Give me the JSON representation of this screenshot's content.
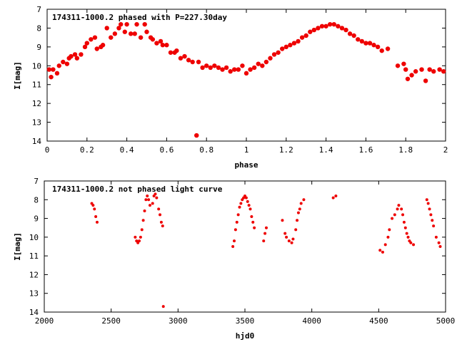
{
  "colors": {
    "marker": "#ee0000",
    "axis": "#000000",
    "background": "#ffffff"
  },
  "chart_data": [
    {
      "type": "scatter",
      "title": "174311-1000.2 phased with P=227.30day",
      "xlabel": "phase",
      "ylabel": "I[mag]",
      "xlim": [
        0,
        2
      ],
      "ylim": [
        14,
        7
      ],
      "y_inverted": true,
      "grid": false,
      "legend": "none",
      "x_ticks": [
        "0",
        "0.2",
        "0.4",
        "0.6",
        "0.8",
        "1",
        "1.2",
        "1.4",
        "1.6",
        "1.8",
        "2"
      ],
      "y_ticks": [
        "7",
        "8",
        "9",
        "10",
        "11",
        "12",
        "13",
        "14"
      ],
      "marker": "filled-circle-large",
      "points": [
        [
          0.01,
          10.2
        ],
        [
          0.02,
          10.6
        ],
        [
          0.03,
          10.2
        ],
        [
          0.05,
          10.4
        ],
        [
          0.06,
          10.0
        ],
        [
          0.08,
          9.8
        ],
        [
          0.1,
          9.9
        ],
        [
          0.11,
          9.6
        ],
        [
          0.12,
          9.5
        ],
        [
          0.14,
          9.4
        ],
        [
          0.15,
          9.6
        ],
        [
          0.17,
          9.4
        ],
        [
          0.19,
          9.0
        ],
        [
          0.2,
          8.8
        ],
        [
          0.22,
          8.6
        ],
        [
          0.24,
          8.5
        ],
        [
          0.25,
          9.1
        ],
        [
          0.27,
          9.0
        ],
        [
          0.28,
          8.9
        ],
        [
          0.3,
          8.0
        ],
        [
          0.32,
          8.5
        ],
        [
          0.34,
          8.3
        ],
        [
          0.36,
          8.0
        ],
        [
          0.37,
          7.8
        ],
        [
          0.39,
          8.2
        ],
        [
          0.4,
          7.8
        ],
        [
          0.42,
          8.3
        ],
        [
          0.44,
          8.3
        ],
        [
          0.45,
          7.8
        ],
        [
          0.47,
          8.5
        ],
        [
          0.49,
          7.8
        ],
        [
          0.5,
          8.2
        ],
        [
          0.52,
          8.5
        ],
        [
          0.53,
          8.6
        ],
        [
          0.55,
          8.8
        ],
        [
          0.57,
          8.7
        ],
        [
          0.58,
          8.9
        ],
        [
          0.6,
          8.9
        ],
        [
          0.62,
          9.3
        ],
        [
          0.64,
          9.3
        ],
        [
          0.65,
          9.2
        ],
        [
          0.67,
          9.6
        ],
        [
          0.69,
          9.5
        ],
        [
          0.71,
          9.7
        ],
        [
          0.73,
          9.8
        ],
        [
          0.75,
          13.7
        ],
        [
          0.76,
          9.8
        ],
        [
          0.78,
          10.1
        ],
        [
          0.8,
          10.0
        ],
        [
          0.82,
          10.1
        ],
        [
          0.84,
          10.0
        ],
        [
          0.86,
          10.1
        ],
        [
          0.88,
          10.2
        ],
        [
          0.9,
          10.1
        ],
        [
          0.92,
          10.3
        ],
        [
          0.94,
          10.2
        ],
        [
          0.96,
          10.2
        ],
        [
          0.98,
          10.0
        ],
        [
          1.0,
          10.4
        ],
        [
          1.02,
          10.2
        ],
        [
          1.04,
          10.1
        ],
        [
          1.06,
          9.9
        ],
        [
          1.08,
          10.0
        ],
        [
          1.1,
          9.8
        ],
        [
          1.12,
          9.6
        ],
        [
          1.14,
          9.4
        ],
        [
          1.16,
          9.3
        ],
        [
          1.18,
          9.1
        ],
        [
          1.2,
          9.0
        ],
        [
          1.22,
          8.9
        ],
        [
          1.24,
          8.8
        ],
        [
          1.26,
          8.7
        ],
        [
          1.28,
          8.5
        ],
        [
          1.3,
          8.4
        ],
        [
          1.32,
          8.2
        ],
        [
          1.34,
          8.1
        ],
        [
          1.36,
          8.0
        ],
        [
          1.38,
          7.9
        ],
        [
          1.4,
          7.9
        ],
        [
          1.42,
          7.8
        ],
        [
          1.44,
          7.8
        ],
        [
          1.46,
          7.9
        ],
        [
          1.48,
          8.0
        ],
        [
          1.5,
          8.1
        ],
        [
          1.52,
          8.3
        ],
        [
          1.54,
          8.4
        ],
        [
          1.56,
          8.6
        ],
        [
          1.58,
          8.7
        ],
        [
          1.6,
          8.8
        ],
        [
          1.62,
          8.8
        ],
        [
          1.64,
          8.9
        ],
        [
          1.66,
          9.0
        ],
        [
          1.68,
          9.2
        ],
        [
          1.71,
          9.1
        ],
        [
          1.76,
          10.0
        ],
        [
          1.79,
          9.9
        ],
        [
          1.8,
          10.2
        ],
        [
          1.81,
          10.7
        ],
        [
          1.83,
          10.5
        ],
        [
          1.85,
          10.3
        ],
        [
          1.88,
          10.2
        ],
        [
          1.9,
          10.8
        ],
        [
          1.92,
          10.2
        ],
        [
          1.94,
          10.3
        ],
        [
          1.97,
          10.2
        ],
        [
          1.99,
          10.3
        ]
      ]
    },
    {
      "type": "scatter",
      "title": "174311-1000.2 not phased light curve",
      "xlabel": "hjd0",
      "ylabel": "I[mag]",
      "xlim": [
        2000,
        5000
      ],
      "ylim": [
        14,
        7
      ],
      "y_inverted": true,
      "grid": false,
      "legend": "none",
      "x_ticks": [
        "2000",
        "2500",
        "3000",
        "3500",
        "4000",
        "4500",
        "5000"
      ],
      "y_ticks": [
        "7",
        "8",
        "9",
        "10",
        "11",
        "12",
        "13",
        "14"
      ],
      "marker": "filled-circle-small",
      "points": [
        [
          2355,
          8.2
        ],
        [
          2365,
          8.3
        ],
        [
          2375,
          8.5
        ],
        [
          2385,
          8.9
        ],
        [
          2395,
          9.2
        ],
        [
          2680,
          10.0
        ],
        [
          2690,
          10.2
        ],
        [
          2700,
          10.3
        ],
        [
          2710,
          10.2
        ],
        [
          2720,
          10.0
        ],
        [
          2730,
          9.6
        ],
        [
          2740,
          9.1
        ],
        [
          2750,
          8.6
        ],
        [
          2760,
          8.0
        ],
        [
          2770,
          7.8
        ],
        [
          2780,
          8.0
        ],
        [
          2790,
          8.3
        ],
        [
          2810,
          8.2
        ],
        [
          2820,
          7.8
        ],
        [
          2830,
          7.7
        ],
        [
          2840,
          7.9
        ],
        [
          2855,
          8.5
        ],
        [
          2865,
          8.8
        ],
        [
          2875,
          9.2
        ],
        [
          2885,
          9.4
        ],
        [
          2890,
          13.7
        ],
        [
          3410,
          10.5
        ],
        [
          3420,
          10.2
        ],
        [
          3430,
          9.6
        ],
        [
          3440,
          9.2
        ],
        [
          3450,
          8.8
        ],
        [
          3460,
          8.4
        ],
        [
          3470,
          8.2
        ],
        [
          3480,
          8.0
        ],
        [
          3490,
          7.9
        ],
        [
          3500,
          7.8
        ],
        [
          3510,
          7.9
        ],
        [
          3520,
          8.1
        ],
        [
          3530,
          8.3
        ],
        [
          3540,
          8.5
        ],
        [
          3550,
          8.9
        ],
        [
          3560,
          9.2
        ],
        [
          3570,
          9.5
        ],
        [
          3640,
          10.2
        ],
        [
          3650,
          9.8
        ],
        [
          3660,
          9.5
        ],
        [
          3780,
          9.1
        ],
        [
          3800,
          9.8
        ],
        [
          3810,
          10.0
        ],
        [
          3830,
          10.2
        ],
        [
          3850,
          10.3
        ],
        [
          3860,
          10.1
        ],
        [
          3880,
          9.6
        ],
        [
          3890,
          9.1
        ],
        [
          3900,
          8.7
        ],
        [
          3910,
          8.5
        ],
        [
          3920,
          8.2
        ],
        [
          3940,
          8.0
        ],
        [
          4160,
          7.9
        ],
        [
          4180,
          7.8
        ],
        [
          4510,
          10.7
        ],
        [
          4530,
          10.8
        ],
        [
          4550,
          10.4
        ],
        [
          4570,
          10.0
        ],
        [
          4580,
          9.6
        ],
        [
          4600,
          9.0
        ],
        [
          4620,
          8.8
        ],
        [
          4640,
          8.5
        ],
        [
          4650,
          8.3
        ],
        [
          4670,
          8.5
        ],
        [
          4680,
          8.8
        ],
        [
          4690,
          9.2
        ],
        [
          4700,
          9.5
        ],
        [
          4710,
          9.8
        ],
        [
          4720,
          10.0
        ],
        [
          4730,
          10.2
        ],
        [
          4740,
          10.3
        ],
        [
          4760,
          10.4
        ],
        [
          4860,
          8.0
        ],
        [
          4870,
          8.2
        ],
        [
          4880,
          8.5
        ],
        [
          4890,
          8.8
        ],
        [
          4900,
          9.1
        ],
        [
          4910,
          9.4
        ],
        [
          4930,
          10.0
        ],
        [
          4950,
          10.3
        ],
        [
          4960,
          10.5
        ]
      ]
    }
  ]
}
